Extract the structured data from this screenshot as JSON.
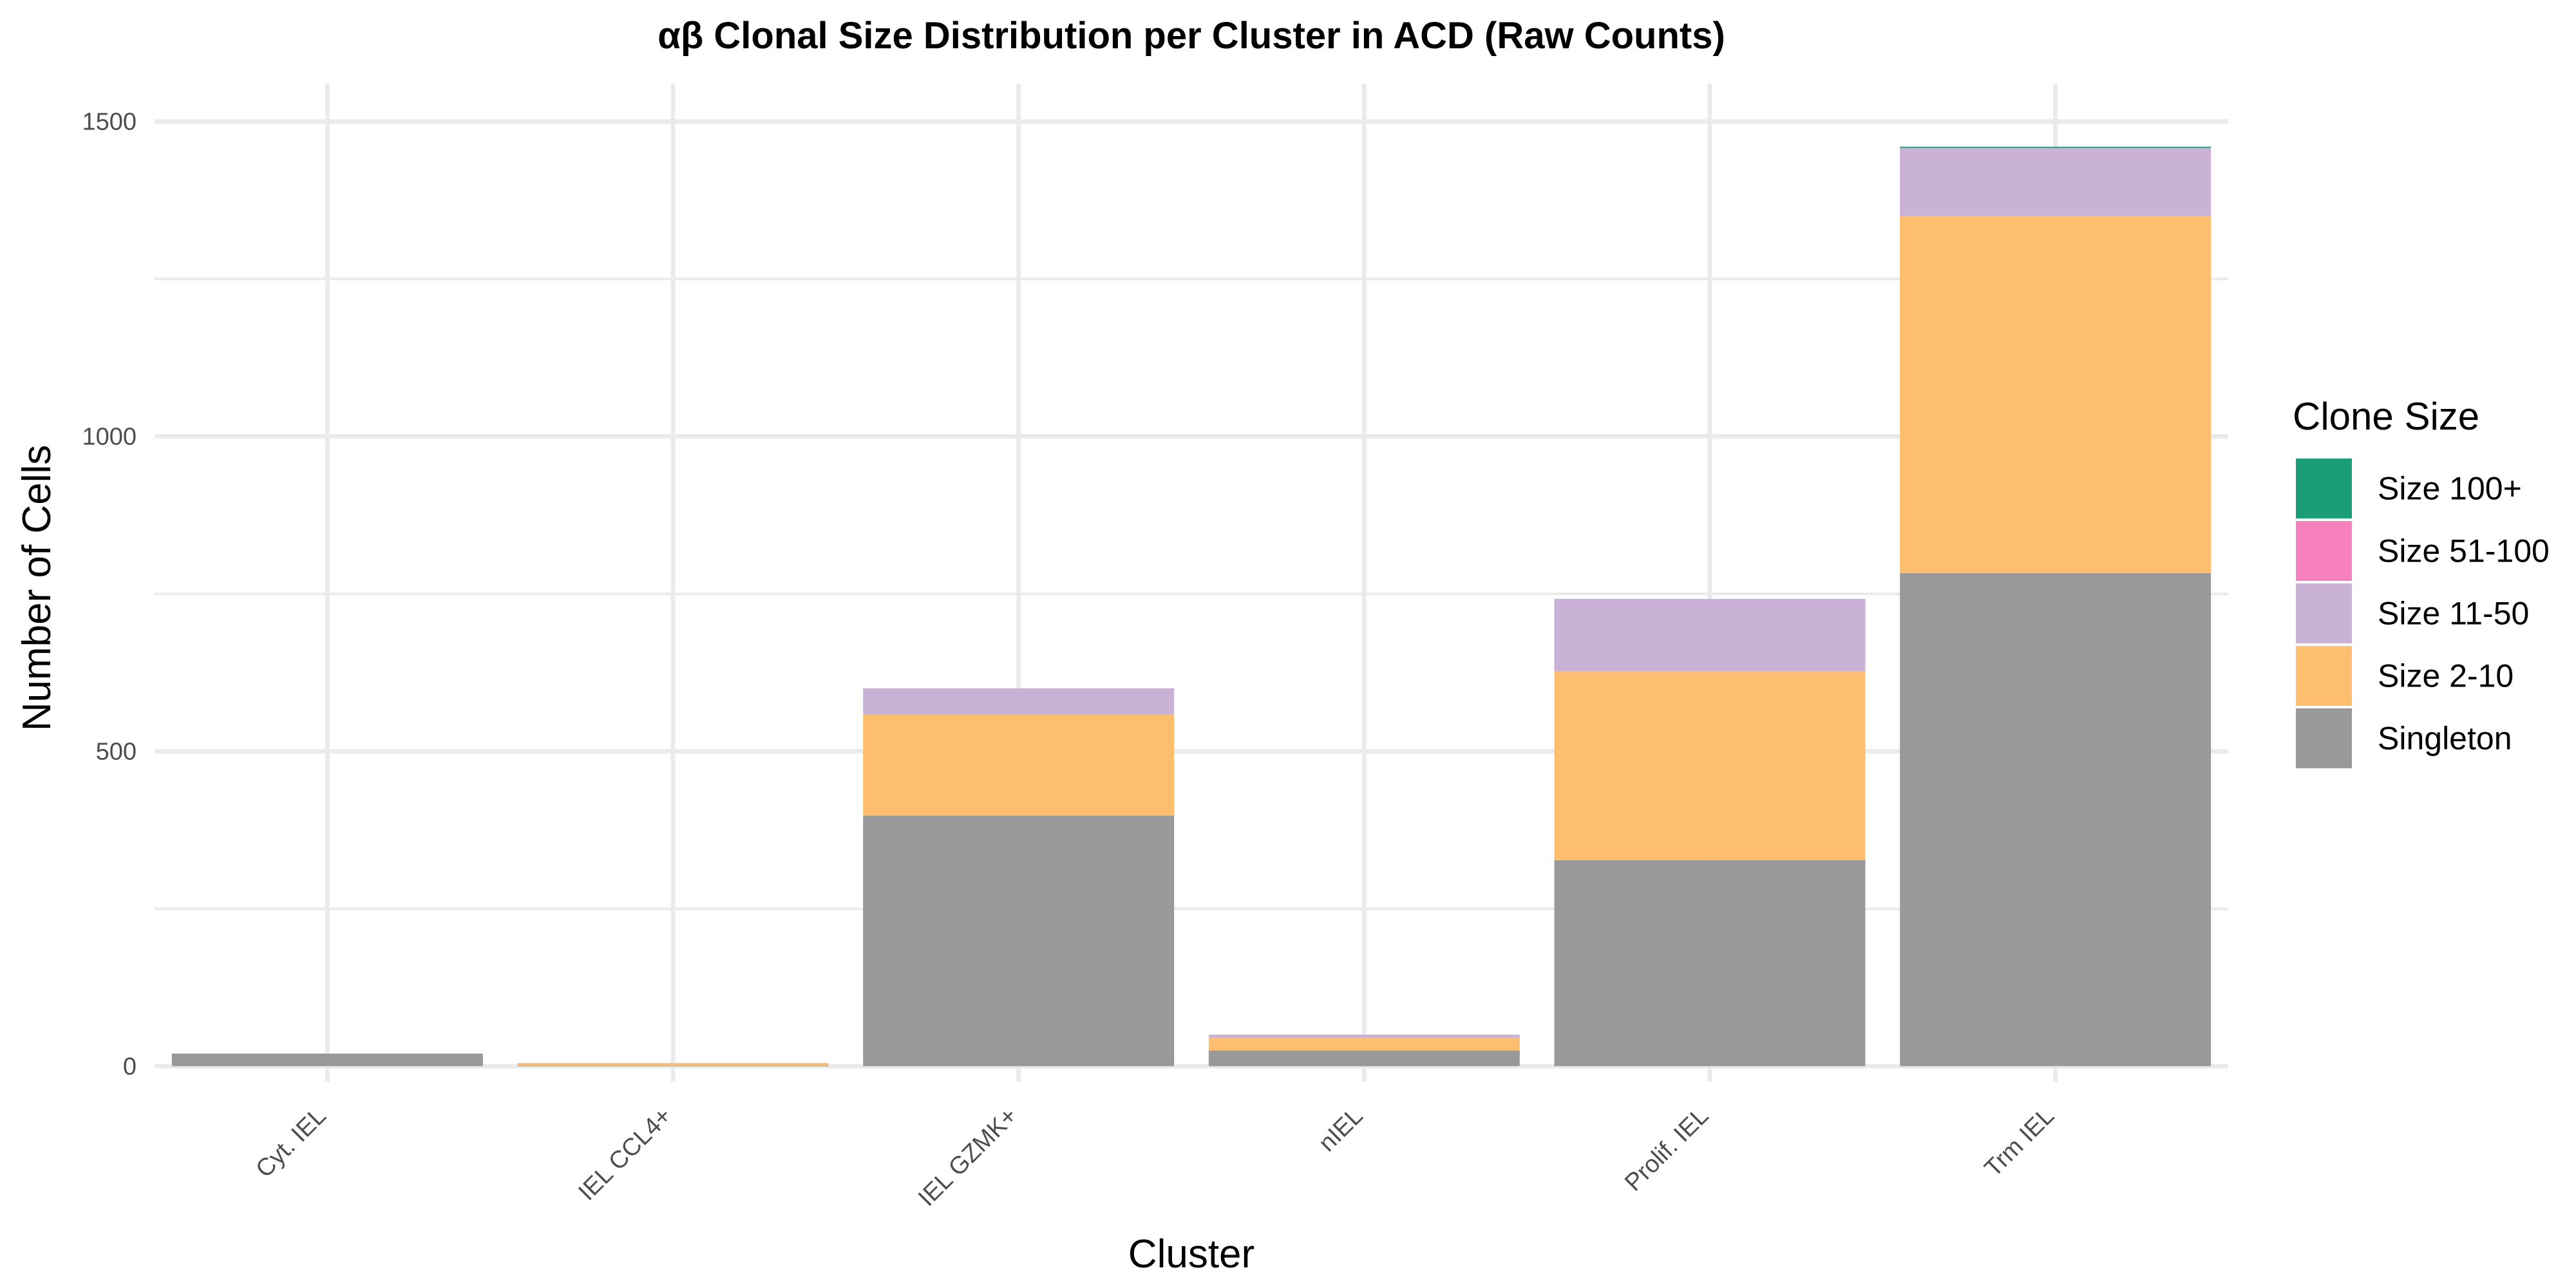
{
  "chart_data": {
    "type": "bar",
    "stacked": true,
    "title": "αβ Clonal Size Distribution per Cluster in ACD (Raw Counts)",
    "xlabel": "Cluster",
    "ylabel": "Number of Cells",
    "categories": [
      "Cyt. IEL",
      "IEL CCL4+",
      "IEL GZMK+",
      "nIEL",
      "Prolif. IEL",
      "Trm IEL"
    ],
    "ylim": [
      -25,
      1560
    ],
    "yticks": [
      0,
      500,
      1000,
      1500
    ],
    "yminor": [
      250,
      750,
      1250
    ],
    "grid": true,
    "legend": {
      "title": "Clone Size",
      "position": "right",
      "entries": [
        "Size 100+",
        "Size 51-100",
        "Size 11-50",
        "Size 2-10",
        "Singleton"
      ]
    },
    "series": [
      {
        "name": "Singleton",
        "color": "#999999",
        "values": [
          20,
          1,
          398,
          25,
          327,
          783
        ]
      },
      {
        "name": "Size 2-10",
        "color": "#FDBF6F",
        "values": [
          0,
          4,
          160,
          20,
          300,
          567
        ]
      },
      {
        "name": "Size 11-50",
        "color": "#CAB2D6",
        "values": [
          0,
          0,
          42,
          5,
          115,
          108
        ]
      },
      {
        "name": "Size 51-100",
        "color": "#F781BF",
        "values": [
          0,
          0,
          0,
          0,
          0,
          0
        ]
      },
      {
        "name": "Size 100+",
        "color": "#1B9E77",
        "values": [
          0,
          0,
          0,
          0,
          0,
          2
        ]
      }
    ]
  }
}
